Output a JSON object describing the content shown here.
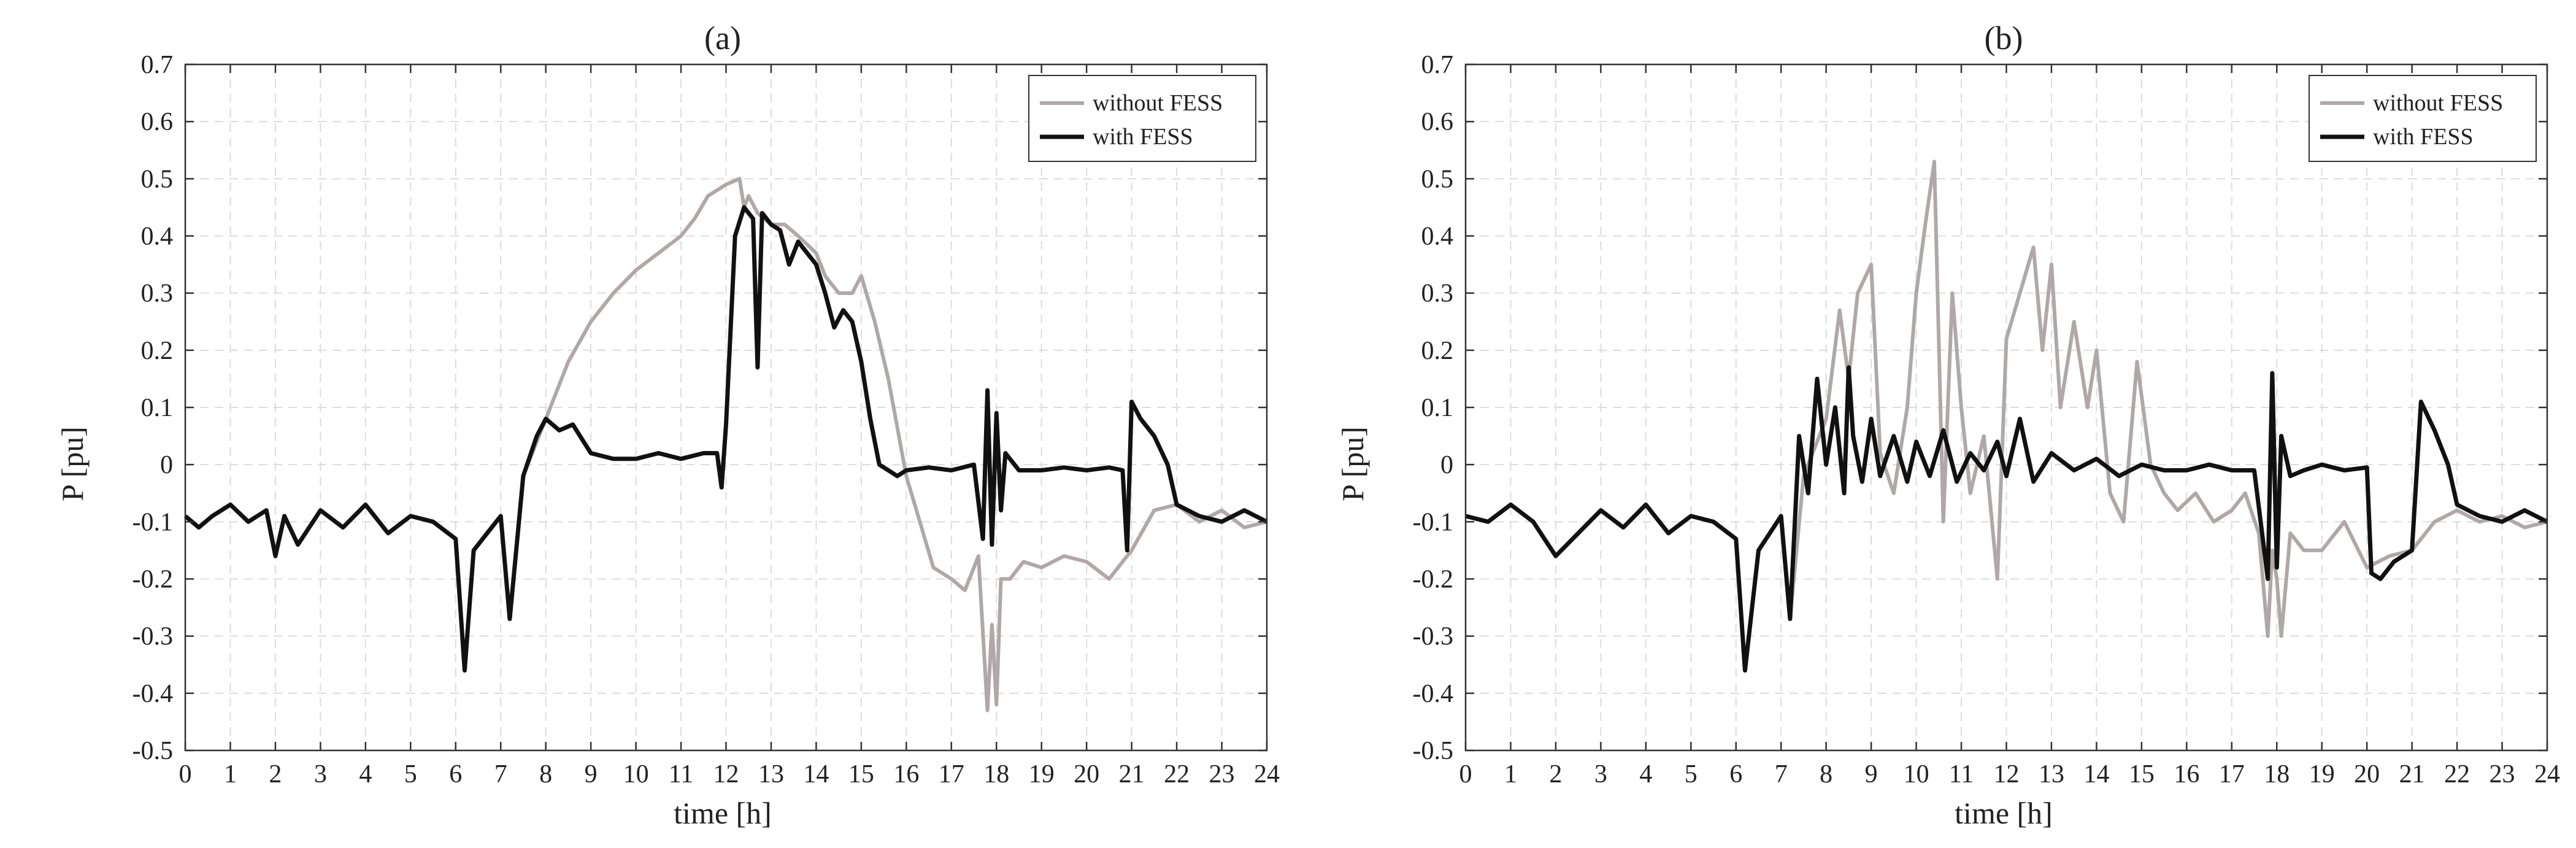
{
  "chart_data": [
    {
      "type": "line",
      "title": "(a)",
      "xlabel": "time [h]",
      "ylabel": "P [pu]",
      "xlim": [
        0,
        24
      ],
      "ylim": [
        -0.5,
        0.7
      ],
      "xticks": [
        0,
        1,
        2,
        3,
        4,
        5,
        6,
        7,
        8,
        9,
        10,
        11,
        12,
        13,
        14,
        15,
        16,
        17,
        18,
        19,
        20,
        21,
        22,
        23,
        24
      ],
      "yticks": [
        -0.5,
        -0.4,
        -0.3,
        -0.2,
        -0.1,
        0,
        0.1,
        0.2,
        0.3,
        0.4,
        0.5,
        0.6,
        0.7
      ],
      "grid": true,
      "legend_position": "top-right",
      "series": [
        {
          "name": "without FESS",
          "color": "#b0a8a8",
          "x": [
            0,
            0.3,
            0.6,
            1,
            1.4,
            1.8,
            2,
            2.2,
            2.5,
            3,
            3.5,
            4,
            4.5,
            5,
            5.5,
            6,
            6.2,
            6.4,
            6.8,
            7,
            7.2,
            7.5,
            8,
            8.5,
            9,
            9.5,
            10,
            10.5,
            11,
            11.3,
            11.6,
            12,
            12.3,
            12.4,
            12.5,
            12.7,
            13,
            13.3,
            13.6,
            14,
            14.2,
            14.5,
            14.8,
            15,
            15.3,
            15.6,
            16,
            16.3,
            16.6,
            17,
            17.3,
            17.6,
            17.8,
            17.9,
            18,
            18.1,
            18.3,
            18.6,
            19,
            19.5,
            20,
            20.5,
            21,
            21.5,
            22,
            22.5,
            23,
            23.5,
            24
          ],
          "y": [
            -0.09,
            -0.11,
            -0.09,
            -0.07,
            -0.1,
            -0.08,
            -0.16,
            -0.09,
            -0.14,
            -0.08,
            -0.11,
            -0.07,
            -0.12,
            -0.09,
            -0.1,
            -0.13,
            -0.36,
            -0.15,
            -0.11,
            -0.09,
            -0.27,
            -0.02,
            0.08,
            0.18,
            0.25,
            0.3,
            0.34,
            0.37,
            0.4,
            0.43,
            0.47,
            0.49,
            0.5,
            0.45,
            0.47,
            0.44,
            0.42,
            0.42,
            0.4,
            0.37,
            0.33,
            0.3,
            0.3,
            0.33,
            0.25,
            0.15,
            -0.02,
            -0.1,
            -0.18,
            -0.2,
            -0.22,
            -0.16,
            -0.43,
            -0.28,
            -0.42,
            -0.2,
            -0.2,
            -0.17,
            -0.18,
            -0.16,
            -0.17,
            -0.2,
            -0.15,
            -0.08,
            -0.07,
            -0.1,
            -0.08,
            -0.11,
            -0.1
          ]
        },
        {
          "name": "with FESS",
          "color": "#111111",
          "x": [
            0,
            0.3,
            0.6,
            1,
            1.4,
            1.8,
            2,
            2.2,
            2.5,
            3,
            3.5,
            4,
            4.5,
            5,
            5.5,
            6,
            6.2,
            6.4,
            6.8,
            7,
            7.2,
            7.5,
            7.8,
            8,
            8.3,
            8.6,
            9,
            9.5,
            10,
            10.5,
            11,
            11.5,
            11.8,
            11.9,
            12,
            12.2,
            12.4,
            12.6,
            12.7,
            12.8,
            13,
            13.2,
            13.4,
            13.6,
            13.8,
            14,
            14.2,
            14.4,
            14.6,
            14.8,
            15,
            15.2,
            15.4,
            15.6,
            15.8,
            16,
            16.5,
            17,
            17.5,
            17.7,
            17.8,
            17.9,
            18,
            18.1,
            18.2,
            18.5,
            19,
            19.5,
            20,
            20.5,
            20.8,
            20.9,
            21,
            21.2,
            21.5,
            21.8,
            22,
            22.5,
            23,
            23.5,
            24
          ],
          "y": [
            -0.09,
            -0.11,
            -0.09,
            -0.07,
            -0.1,
            -0.08,
            -0.16,
            -0.09,
            -0.14,
            -0.08,
            -0.11,
            -0.07,
            -0.12,
            -0.09,
            -0.1,
            -0.13,
            -0.36,
            -0.15,
            -0.11,
            -0.09,
            -0.27,
            -0.02,
            0.05,
            0.08,
            0.06,
            0.07,
            0.02,
            0.01,
            0.01,
            0.02,
            0.01,
            0.02,
            0.02,
            -0.04,
            0.07,
            0.4,
            0.45,
            0.43,
            0.17,
            0.44,
            0.42,
            0.41,
            0.35,
            0.39,
            0.37,
            0.35,
            0.3,
            0.24,
            0.27,
            0.25,
            0.18,
            0.08,
            0.0,
            -0.01,
            -0.02,
            -0.01,
            -0.005,
            -0.01,
            0.0,
            -0.13,
            0.13,
            -0.14,
            0.09,
            -0.08,
            0.02,
            -0.01,
            -0.01,
            -0.005,
            -0.01,
            -0.005,
            -0.01,
            -0.15,
            0.11,
            0.08,
            0.05,
            0.0,
            -0.07,
            -0.09,
            -0.1,
            -0.08,
            -0.1
          ]
        }
      ]
    },
    {
      "type": "line",
      "title": "(b)",
      "xlabel": "time [h]",
      "ylabel": "P [pu]",
      "xlim": [
        0,
        24
      ],
      "ylim": [
        -0.5,
        0.7
      ],
      "xticks": [
        0,
        1,
        2,
        3,
        4,
        5,
        6,
        7,
        8,
        9,
        10,
        11,
        12,
        13,
        14,
        15,
        16,
        17,
        18,
        19,
        20,
        21,
        22,
        23,
        24
      ],
      "yticks": [
        -0.5,
        -0.4,
        -0.3,
        -0.2,
        -0.1,
        0,
        0.1,
        0.2,
        0.3,
        0.4,
        0.5,
        0.6,
        0.7
      ],
      "grid": true,
      "legend_position": "top-right",
      "series": [
        {
          "name": "without FESS",
          "color": "#b0a8a8",
          "x": [
            0,
            0.5,
            1,
            1.5,
            2,
            2.5,
            3,
            3.5,
            4,
            4.5,
            5,
            5.5,
            6,
            6.2,
            6.5,
            7,
            7.2,
            7.5,
            8,
            8.3,
            8.5,
            8.7,
            9,
            9.2,
            9.5,
            9.8,
            10,
            10.2,
            10.4,
            10.6,
            10.8,
            11,
            11.2,
            11.5,
            11.8,
            12,
            12.3,
            12.6,
            12.8,
            13,
            13.2,
            13.5,
            13.8,
            14,
            14.3,
            14.6,
            14.9,
            15.2,
            15.5,
            15.8,
            16.2,
            16.6,
            17,
            17.3,
            17.6,
            17.8,
            17.9,
            18,
            18.1,
            18.3,
            18.6,
            19,
            19.5,
            20,
            20.5,
            21,
            21.5,
            22,
            22.5,
            23,
            23.5,
            24
          ],
          "y": [
            -0.09,
            -0.1,
            -0.07,
            -0.1,
            -0.16,
            -0.12,
            -0.08,
            -0.11,
            -0.07,
            -0.12,
            -0.09,
            -0.1,
            -0.13,
            -0.36,
            -0.15,
            -0.09,
            -0.27,
            -0.02,
            0.08,
            0.27,
            0.15,
            0.3,
            0.35,
            0.02,
            -0.05,
            0.1,
            0.3,
            0.42,
            0.53,
            -0.1,
            0.3,
            0.1,
            -0.05,
            0.05,
            -0.2,
            0.22,
            0.3,
            0.38,
            0.2,
            0.35,
            0.1,
            0.25,
            0.1,
            0.2,
            -0.05,
            -0.1,
            0.18,
            0.0,
            -0.05,
            -0.08,
            -0.05,
            -0.1,
            -0.08,
            -0.05,
            -0.12,
            -0.3,
            -0.15,
            -0.2,
            -0.3,
            -0.12,
            -0.15,
            -0.15,
            -0.1,
            -0.18,
            -0.16,
            -0.15,
            -0.1,
            -0.08,
            -0.1,
            -0.09,
            -0.11,
            -0.1
          ]
        },
        {
          "name": "with FESS",
          "color": "#111111",
          "x": [
            0,
            0.5,
            1,
            1.5,
            2,
            2.5,
            3,
            3.5,
            4,
            4.5,
            5,
            5.5,
            6,
            6.2,
            6.5,
            7,
            7.2,
            7.4,
            7.6,
            7.8,
            8,
            8.2,
            8.4,
            8.5,
            8.6,
            8.8,
            9,
            9.2,
            9.5,
            9.8,
            10,
            10.3,
            10.6,
            10.9,
            11.2,
            11.5,
            11.8,
            12,
            12.3,
            12.6,
            13,
            13.5,
            14,
            14.5,
            15,
            15.5,
            16,
            16.5,
            17,
            17.5,
            17.8,
            17.9,
            18,
            18.1,
            18.3,
            18.6,
            19,
            19.5,
            20,
            20.1,
            20.3,
            20.6,
            21,
            21.2,
            21.5,
            21.8,
            22,
            22.5,
            23,
            23.5,
            24
          ],
          "y": [
            -0.09,
            -0.1,
            -0.07,
            -0.1,
            -0.16,
            -0.12,
            -0.08,
            -0.11,
            -0.07,
            -0.12,
            -0.09,
            -0.1,
            -0.13,
            -0.36,
            -0.15,
            -0.09,
            -0.27,
            0.05,
            -0.05,
            0.15,
            0.0,
            0.1,
            -0.05,
            0.17,
            0.05,
            -0.03,
            0.08,
            -0.02,
            0.05,
            -0.03,
            0.04,
            -0.02,
            0.06,
            -0.03,
            0.02,
            -0.01,
            0.04,
            -0.02,
            0.08,
            -0.03,
            0.02,
            -0.01,
            0.01,
            -0.02,
            0.0,
            -0.01,
            -0.01,
            0.0,
            -0.01,
            -0.01,
            -0.2,
            0.16,
            -0.18,
            0.05,
            -0.02,
            -0.01,
            0.0,
            -0.01,
            -0.005,
            -0.19,
            -0.2,
            -0.17,
            -0.15,
            0.11,
            0.06,
            0.0,
            -0.07,
            -0.09,
            -0.1,
            -0.08,
            -0.1
          ]
        }
      ]
    }
  ]
}
